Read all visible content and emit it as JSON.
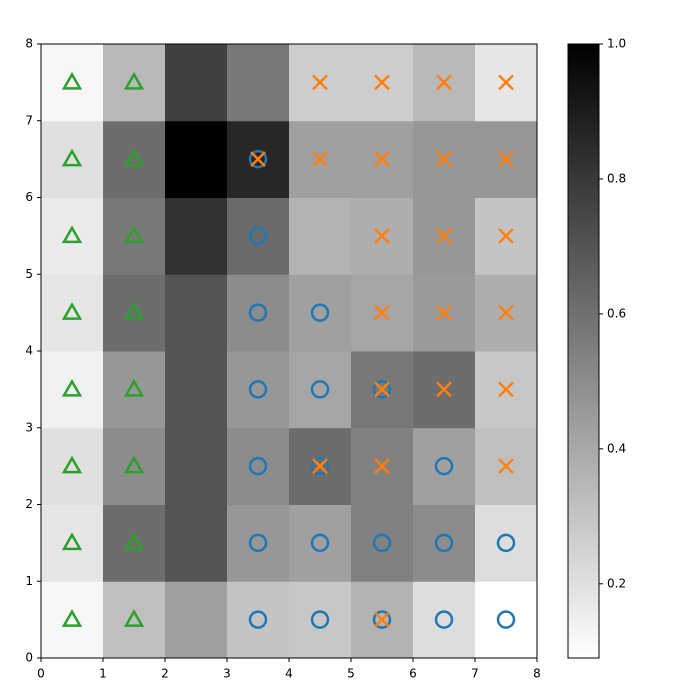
{
  "chart_data": {
    "type": "heatmap",
    "xlim": [
      0,
      8
    ],
    "ylim": [
      0,
      8
    ],
    "xticks": [
      0,
      1,
      2,
      3,
      4,
      5,
      6,
      7,
      8
    ],
    "yticks": [
      0,
      1,
      2,
      3,
      4,
      5,
      6,
      7,
      8
    ],
    "z": [
      [
        0.12,
        0.32,
        0.43,
        0.3,
        0.29,
        0.36,
        0.21,
        0.09
      ],
      [
        0.18,
        0.61,
        0.7,
        0.46,
        0.43,
        0.54,
        0.5,
        0.21
      ],
      [
        0.2,
        0.5,
        0.7,
        0.5,
        0.61,
        0.54,
        0.43,
        0.32
      ],
      [
        0.14,
        0.46,
        0.7,
        0.46,
        0.41,
        0.57,
        0.61,
        0.29
      ],
      [
        0.18,
        0.61,
        0.7,
        0.5,
        0.43,
        0.41,
        0.45,
        0.38
      ],
      [
        0.16,
        0.57,
        0.82,
        0.62,
        0.36,
        0.38,
        0.46,
        0.3
      ],
      [
        0.2,
        0.61,
        1.0,
        0.86,
        0.43,
        0.43,
        0.46,
        0.46
      ],
      [
        0.12,
        0.34,
        0.77,
        0.57,
        0.27,
        0.27,
        0.34,
        0.18
      ]
    ],
    "zlim": [
      0.09,
      1.0
    ],
    "colormap": "gray_r",
    "zticks": [
      0.2,
      0.4,
      0.6,
      0.8,
      {
        "value": 1.0,
        "label": "1.0"
      }
    ],
    "series": [
      {
        "marker": "triangle",
        "color": "#2ca02c",
        "x": [
          0.5,
          1.5,
          0.5,
          1.5,
          0.5,
          1.5,
          0.5,
          1.5,
          0.5,
          1.5,
          0.5,
          1.5,
          0.5,
          1.5,
          0.5,
          1.5
        ],
        "y": [
          0.5,
          0.5,
          1.5,
          1.5,
          2.5,
          2.5,
          3.5,
          3.5,
          4.5,
          4.5,
          5.5,
          5.5,
          6.5,
          6.5,
          7.5,
          7.5
        ]
      },
      {
        "marker": "circle",
        "color": "#1f77b4",
        "x": [
          3.5,
          4.5,
          5.5,
          6.5,
          7.5,
          3.5,
          4.5,
          5.5,
          6.5,
          7.5,
          3.5,
          4.5,
          6.5,
          3.5,
          4.5,
          5.5,
          3.5,
          4.5,
          3.5,
          3.5
        ],
        "y": [
          0.5,
          0.5,
          0.5,
          0.5,
          0.5,
          1.5,
          1.5,
          1.5,
          1.5,
          1.5,
          2.5,
          2.5,
          2.5,
          3.5,
          3.5,
          3.5,
          4.5,
          4.5,
          5.5,
          6.5
        ]
      },
      {
        "marker": "x",
        "color": "#ff7f0e",
        "x": [
          5.5,
          4.5,
          5.5,
          7.5,
          5.5,
          6.5,
          7.5,
          5.5,
          6.5,
          7.5,
          5.5,
          6.5,
          7.5,
          3.5,
          4.5,
          5.5,
          6.5,
          7.5,
          4.5,
          5.5,
          6.5,
          7.5
        ],
        "y": [
          0.5,
          2.5,
          2.5,
          2.5,
          3.5,
          3.5,
          3.5,
          4.5,
          4.5,
          4.5,
          5.5,
          5.5,
          5.5,
          6.5,
          6.5,
          6.5,
          6.5,
          6.5,
          7.5,
          7.5,
          7.5,
          7.5
        ]
      }
    ]
  }
}
